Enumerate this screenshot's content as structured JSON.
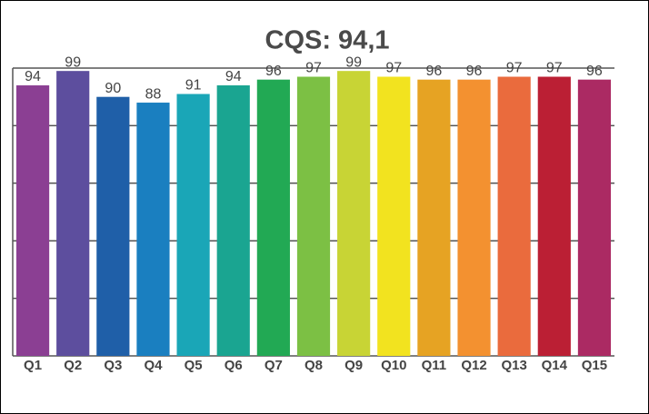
{
  "chart_data": {
    "type": "bar",
    "title": "CQS: 94,1",
    "categories": [
      "Q1",
      "Q2",
      "Q3",
      "Q4",
      "Q5",
      "Q6",
      "Q7",
      "Q8",
      "Q9",
      "Q10",
      "Q11",
      "Q12",
      "Q13",
      "Q14",
      "Q15"
    ],
    "values": [
      94,
      99,
      90,
      88,
      91,
      94,
      96,
      97,
      99,
      97,
      96,
      96,
      97,
      97,
      96
    ],
    "colors": [
      "#8b3f93",
      "#5d4e9e",
      "#1f5fa8",
      "#1a7fc0",
      "#1aa6b7",
      "#1aa591",
      "#22a954",
      "#7cc044",
      "#c8d435",
      "#f2e31f",
      "#e6a323",
      "#f39130",
      "#ea6b3d",
      "#bb1f34",
      "#ab2a63"
    ],
    "ylim": [
      0,
      100
    ],
    "yticks": [
      0,
      20,
      40,
      60,
      80,
      100
    ],
    "grid": true
  }
}
